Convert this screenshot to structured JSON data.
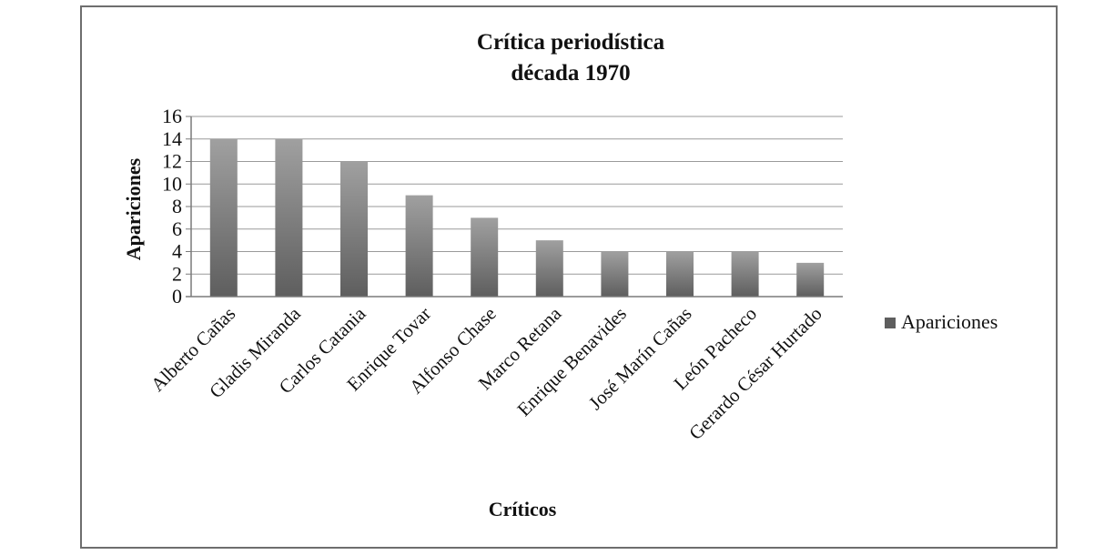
{
  "chart_data": {
    "type": "bar",
    "title": [
      "Crítica periodística",
      "década 1970"
    ],
    "xlabel": "Críticos",
    "ylabel": "Apariciones",
    "categories": [
      "Alberto Cañas",
      "Gladis Miranda",
      "Carlos Catania",
      "Enrique Tovar",
      "Alfonso Chase",
      "Marco Retana",
      "Enrique Benavides",
      "José Marín Cañas",
      "León Pacheco",
      "Gerardo César Hurtado"
    ],
    "series": [
      {
        "name": "Apariciones",
        "values": [
          14,
          14,
          12,
          9,
          7,
          5,
          4,
          4,
          4,
          3
        ]
      }
    ],
    "ylim": [
      0,
      16
    ],
    "yticks": [
      0,
      2,
      4,
      6,
      8,
      10,
      12,
      14,
      16
    ],
    "grid": true,
    "legend": "right",
    "colors": {
      "bar_dark": "#5e5e5e",
      "bar_light": "#a0a0a0",
      "grid": "#9a9a9a",
      "axis": "#7a7a7a",
      "frame": "#6e6e6e"
    }
  }
}
